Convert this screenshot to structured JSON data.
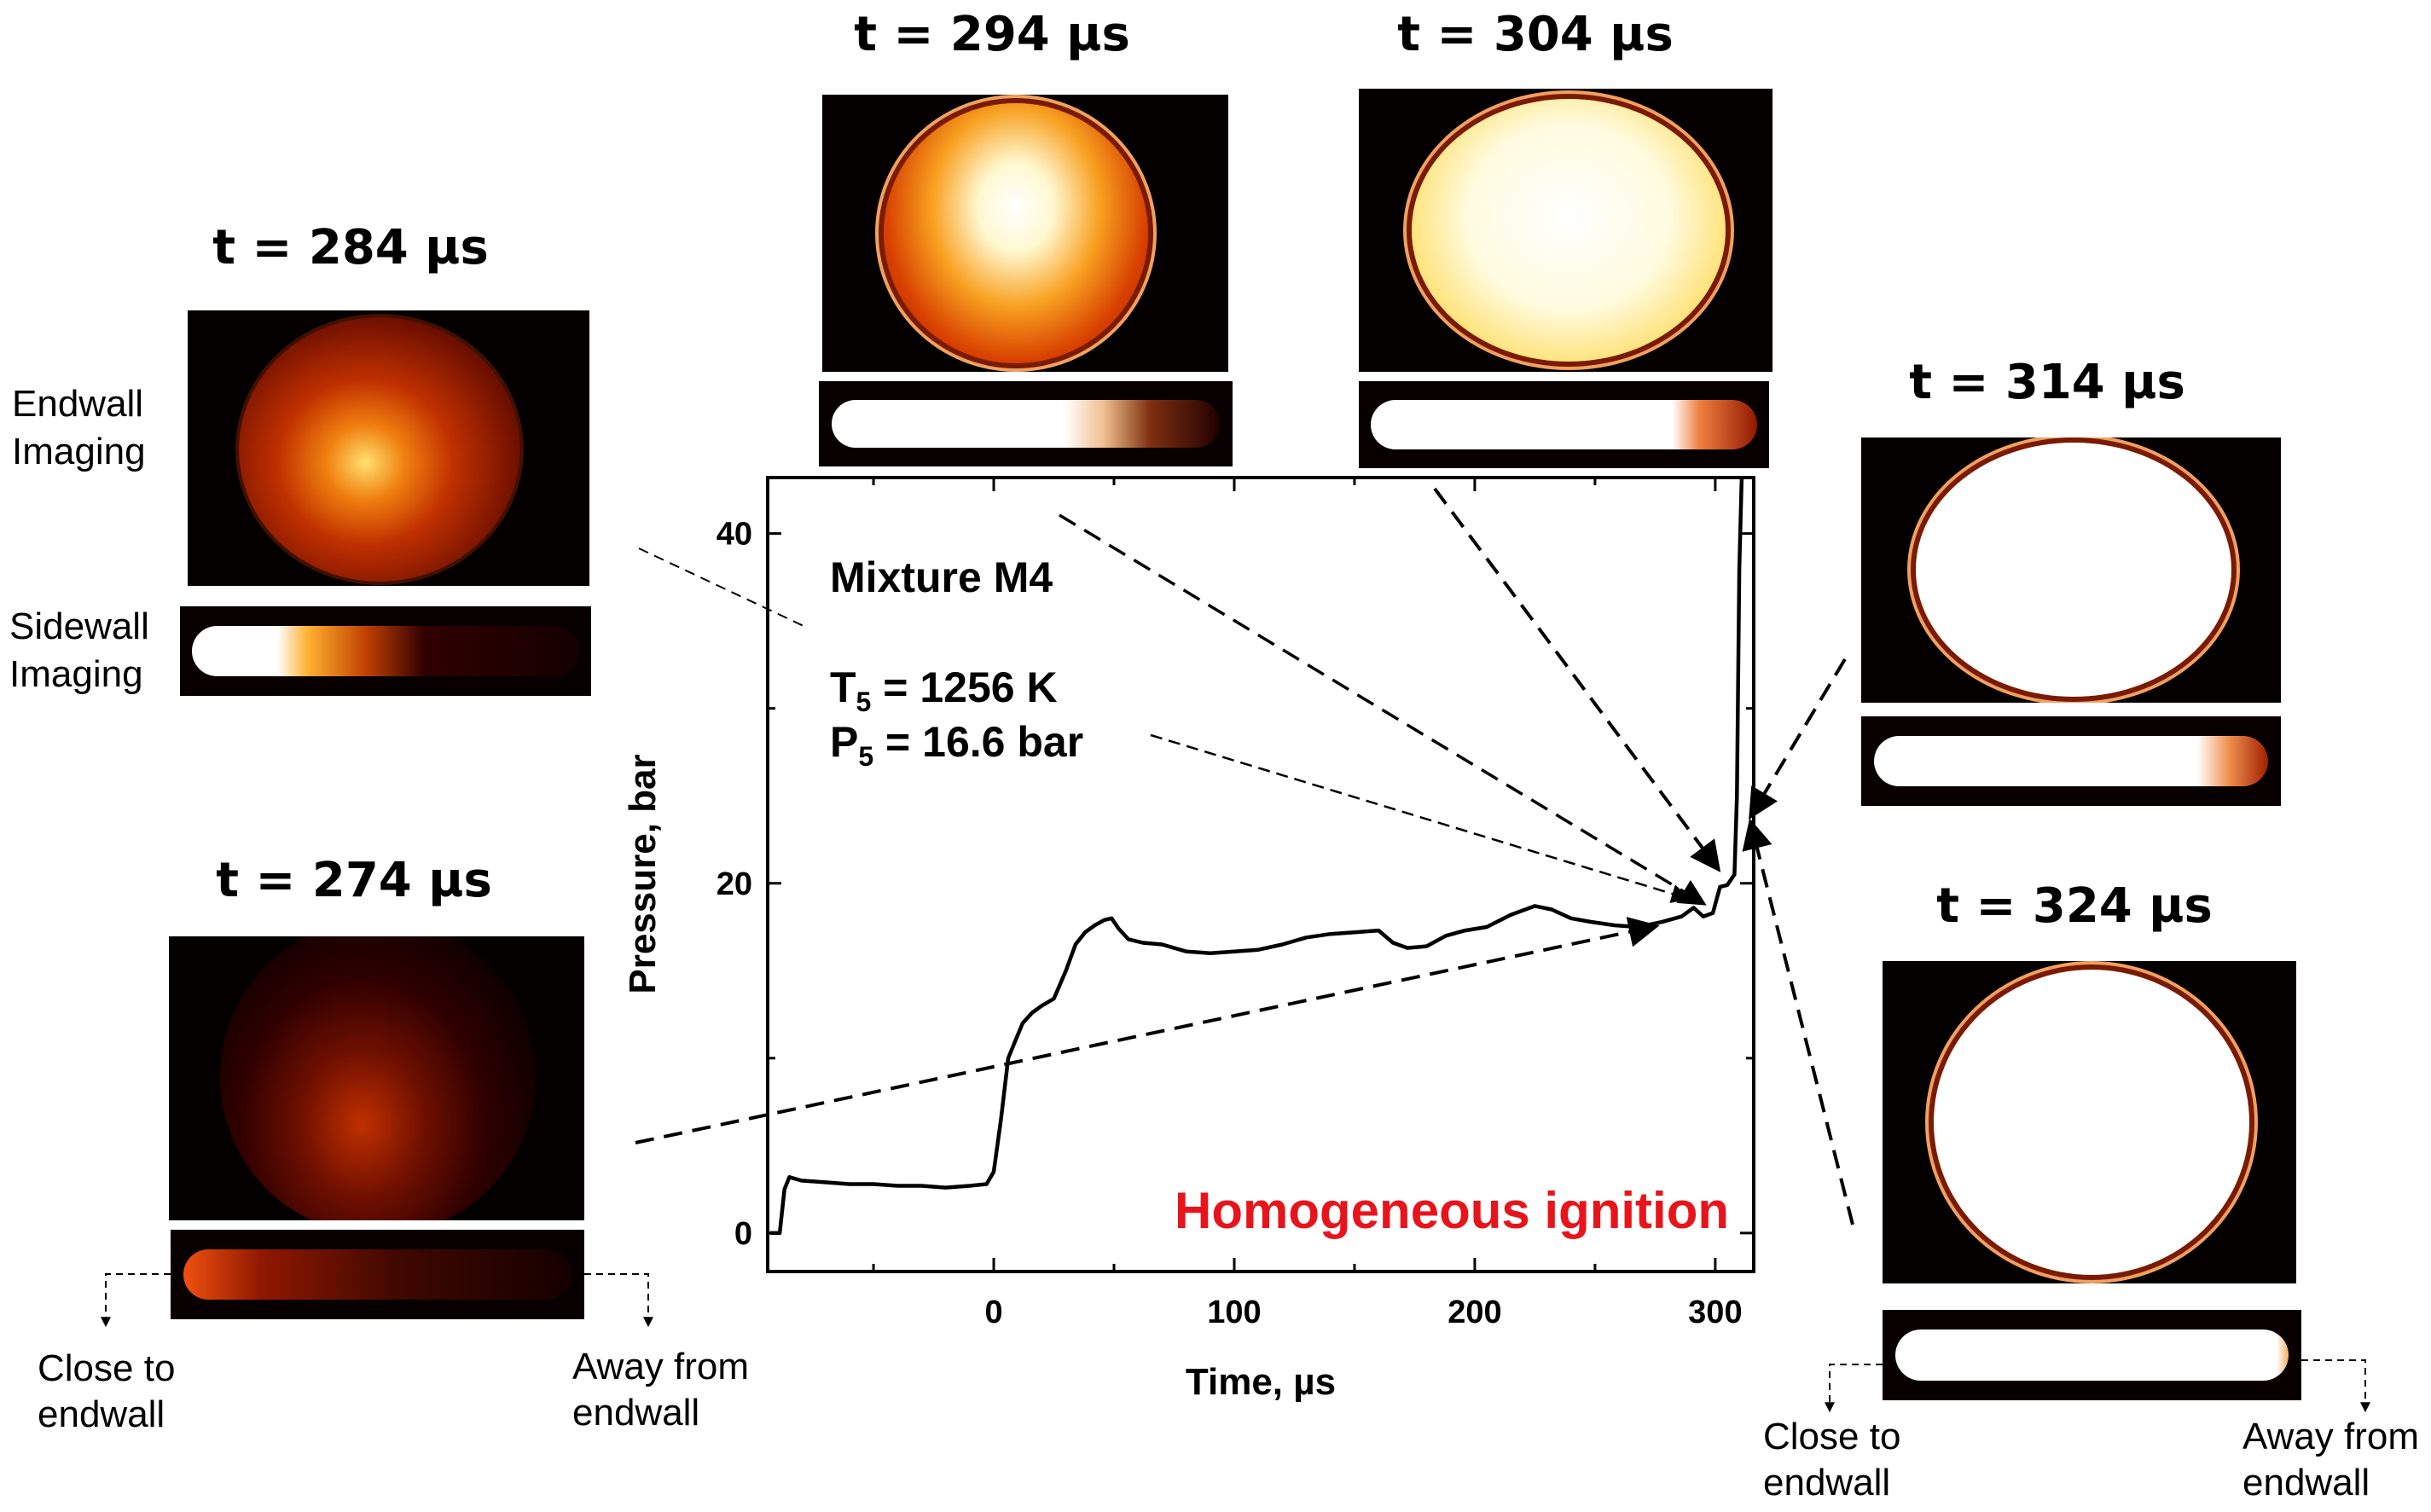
{
  "frames": [
    {
      "label": "t = 274 µs"
    },
    {
      "label": "t = 284 µs"
    },
    {
      "label": "t = 294 µs"
    },
    {
      "label": "t = 304 µs"
    },
    {
      "label": "t = 314 µs"
    },
    {
      "label": "t = 324 µs"
    }
  ],
  "side_labels": {
    "endwall": "Endwall Imaging",
    "sidewall": "Sidewall Imaging"
  },
  "notes": {
    "left_close": "Close to endwall",
    "left_away": "Away from endwall",
    "right_close": "Close to endwall",
    "right_away": "Away from endwall"
  },
  "chart_data": {
    "type": "line",
    "xlabel": "Time, µs",
    "ylabel": "Pressure, bar",
    "xlim": [
      -94,
      316
    ],
    "ylim": [
      -2.2,
      43.2
    ],
    "xticks": [
      0,
      100,
      200,
      300
    ],
    "xminor": [
      -50,
      50,
      150,
      250
    ],
    "yticks": [
      0,
      20,
      40
    ],
    "yminor": [
      10,
      30
    ],
    "annotations": {
      "mixture": "Mixture M4",
      "t5_sym": "T",
      "t5_sub": "5",
      "t5_val": " = 1256 K",
      "p5_sym": "P",
      "p5_sub": "5",
      "p5_val": " = 16.6 bar",
      "regime": "Homogeneous ignition"
    },
    "series": [
      {
        "name": "Pressure",
        "x": [
          -93,
          -89,
          -87,
          -85,
          -80,
          -70,
          -60,
          -50,
          -40,
          -30,
          -20,
          -10,
          -3,
          0,
          3,
          6,
          9,
          12,
          16,
          20,
          25,
          30,
          34,
          38,
          42,
          46,
          49,
          52,
          56,
          62,
          70,
          80,
          90,
          100,
          110,
          120,
          130,
          140,
          150,
          160,
          166,
          172,
          180,
          188,
          196,
          205,
          215,
          225,
          232,
          240,
          248,
          258,
          268,
          278,
          286,
          291,
          295,
          299,
          302,
          305,
          308,
          309,
          310,
          311
        ],
        "y": [
          0,
          0,
          2.5,
          3.2,
          3.0,
          2.9,
          2.8,
          2.8,
          2.7,
          2.7,
          2.6,
          2.7,
          2.8,
          3.5,
          6.5,
          10,
          11,
          12,
          12.6,
          13,
          13.4,
          15,
          16.5,
          17.2,
          17.6,
          17.9,
          18,
          17.4,
          16.8,
          16.6,
          16.5,
          16.1,
          16.0,
          16.1,
          16.2,
          16.5,
          16.9,
          17.1,
          17.2,
          17.3,
          16.6,
          16.3,
          16.4,
          17.0,
          17.3,
          17.5,
          18.2,
          18.7,
          18.5,
          18.0,
          17.8,
          17.6,
          17.5,
          17.8,
          18.1,
          18.6,
          18.1,
          18.3,
          19.8,
          19.9,
          20.5,
          25,
          38,
          44
        ]
      }
    ]
  }
}
